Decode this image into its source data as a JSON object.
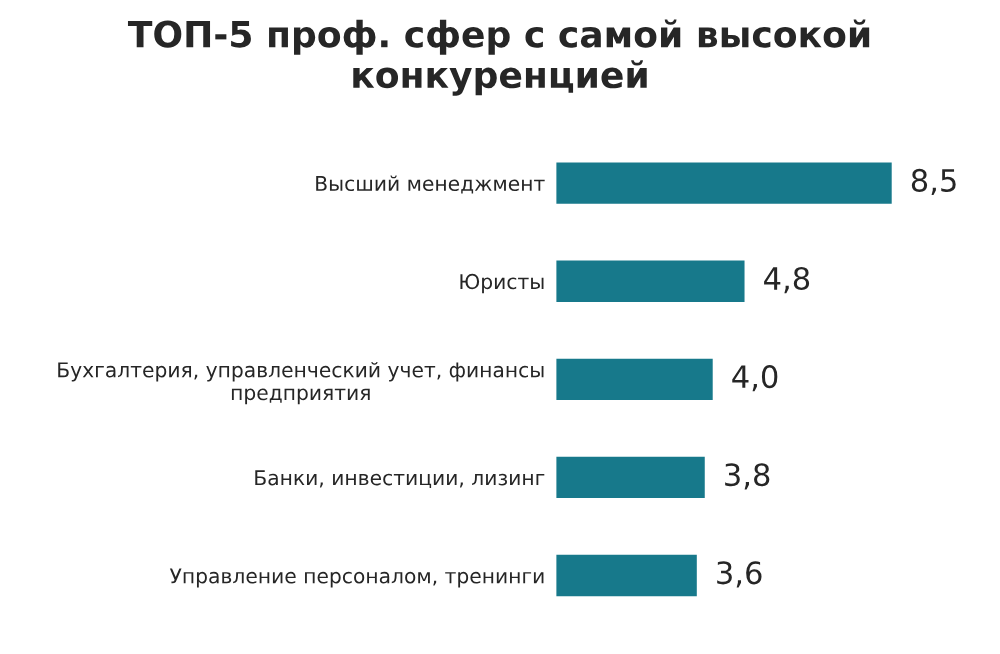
{
  "chart_data": {
    "type": "bar",
    "orientation": "horizontal",
    "title": "ТОП-5 проф. сфер с самой высокой конкуренцией",
    "categories": [
      "Высший менеджмент",
      "Юристы",
      "Бухгалтерия, управленческий учет, финансы предприятия",
      "Банки, инвестиции, лизинг",
      "Управление персоналом, тренинги"
    ],
    "values": [
      8.5,
      4.8,
      4.0,
      3.8,
      3.6
    ],
    "value_labels": [
      "8,5",
      "4,8",
      "4,0",
      "3,8",
      "3,6"
    ],
    "color": "#17798b"
  }
}
